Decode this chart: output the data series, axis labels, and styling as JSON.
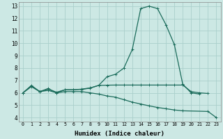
{
  "xlabel": "Humidex (Indice chaleur)",
  "ylabel": "",
  "bg_color": "#cce8e4",
  "grid_color": "#aacfcb",
  "line_color": "#1a6b5a",
  "xlim": [
    -0.5,
    23.5
  ],
  "ylim": [
    3.7,
    13.3
  ],
  "yticks": [
    4,
    5,
    6,
    7,
    8,
    9,
    10,
    11,
    12,
    13
  ],
  "xticks": [
    0,
    1,
    2,
    3,
    4,
    5,
    6,
    7,
    8,
    9,
    10,
    11,
    12,
    13,
    14,
    15,
    16,
    17,
    18,
    19,
    20,
    21,
    22,
    23
  ],
  "line1_x": [
    0,
    1,
    2,
    3,
    4,
    5,
    6,
    7,
    8,
    9,
    10,
    11,
    12,
    13,
    14,
    15,
    16,
    17,
    18,
    19,
    20,
    21
  ],
  "line1_y": [
    6.0,
    6.6,
    6.1,
    6.35,
    6.0,
    6.25,
    6.25,
    6.3,
    6.4,
    6.6,
    7.3,
    7.5,
    8.0,
    9.5,
    12.8,
    13.0,
    12.8,
    11.5,
    9.9,
    6.7,
    6.0,
    5.9
  ],
  "line2_x": [
    0,
    1,
    2,
    3,
    4,
    5,
    6,
    7,
    8,
    9,
    10,
    11,
    12,
    13,
    14,
    15,
    16,
    17,
    18,
    19,
    20,
    21,
    22
  ],
  "line2_y": [
    6.0,
    6.55,
    6.1,
    6.3,
    6.05,
    6.25,
    6.25,
    6.28,
    6.38,
    6.6,
    6.62,
    6.63,
    6.63,
    6.63,
    6.63,
    6.63,
    6.63,
    6.63,
    6.63,
    6.63,
    6.1,
    6.0,
    5.95
  ],
  "line3_x": [
    0,
    1,
    2,
    3,
    4,
    5,
    6,
    7,
    8,
    9,
    10,
    11,
    12,
    13,
    14,
    15,
    16,
    17,
    18,
    19,
    22,
    23
  ],
  "line3_y": [
    6.0,
    6.5,
    6.1,
    6.2,
    6.0,
    6.1,
    6.1,
    6.1,
    6.0,
    5.9,
    5.75,
    5.65,
    5.45,
    5.25,
    5.1,
    4.95,
    4.82,
    4.72,
    4.62,
    4.55,
    4.5,
    4.0
  ]
}
